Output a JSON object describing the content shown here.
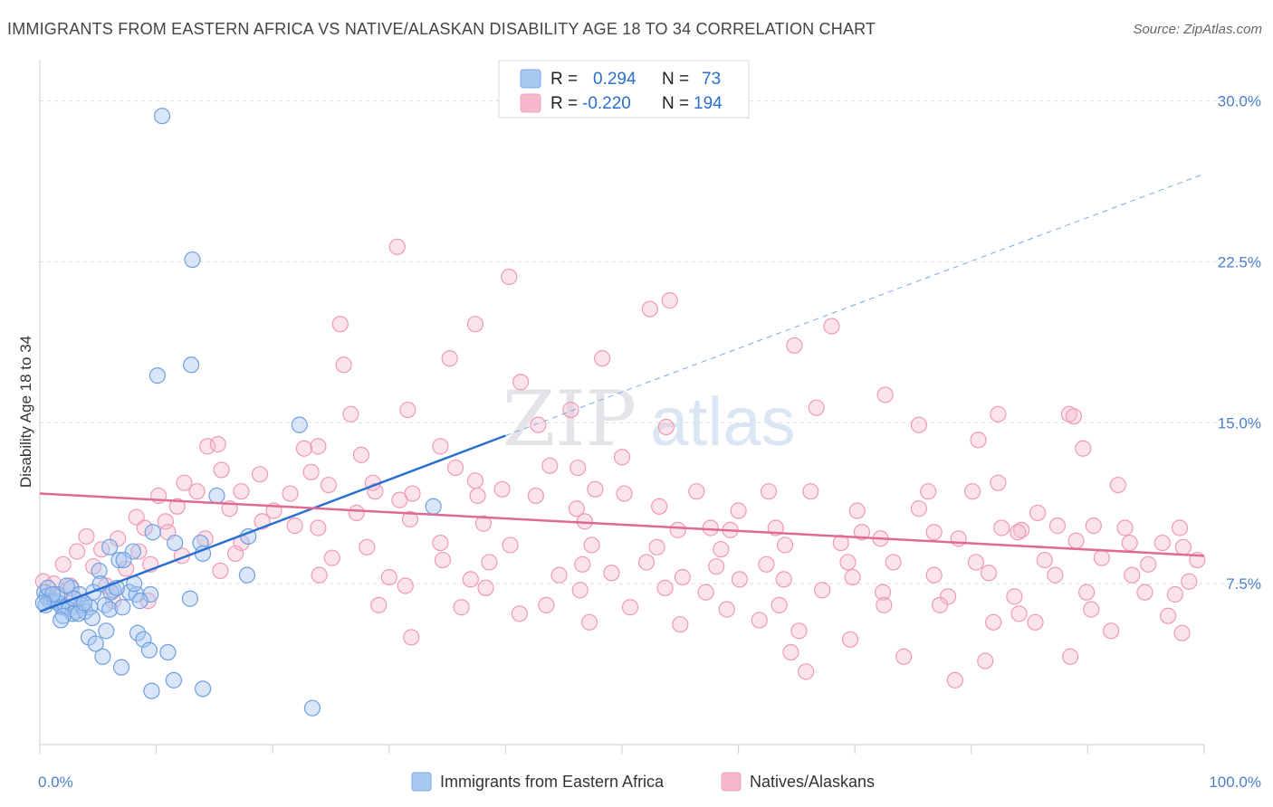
{
  "title": "IMMIGRANTS FROM EASTERN AFRICA VS NATIVE/ALASKAN DISABILITY AGE 18 TO 34 CORRELATION CHART",
  "source": "Source: ZipAtlas.com",
  "watermark": {
    "zip": "ZIP",
    "atlas": "atlas"
  },
  "legend_top": [
    {
      "r_label": "R =",
      "r_value": "0.294",
      "n_label": "N =",
      "n_value": "73",
      "color": "#a8c8f0"
    },
    {
      "r_label": "R =",
      "r_value": "-0.220",
      "n_label": "N =",
      "n_value": "194",
      "color": "#f5b8cc"
    }
  ],
  "chart_data": {
    "type": "scatter",
    "title": "IMMIGRANTS FROM EASTERN AFRICA VS NATIVE/ALASKAN DISABILITY AGE 18 TO 34 CORRELATION CHART",
    "xlabel": "",
    "ylabel": "Disability Age 18 to 34",
    "xlim": [
      0,
      100
    ],
    "ylim": [
      0,
      31.5
    ],
    "x_tick_labels": [
      "0.0%",
      "100.0%"
    ],
    "y_ticks": [
      7.5,
      15.0,
      22.5,
      30.0
    ],
    "y_tick_labels": [
      "7.5%",
      "15.0%",
      "22.5%",
      "30.0%"
    ],
    "grid": true,
    "legend_position": "bottom",
    "series": [
      {
        "name": "Immigrants from Eastern Africa",
        "color": "#7aa8e8",
        "line_color": "#2a6fcf",
        "trend": {
          "x0": 0,
          "y0": 6.2,
          "x1": 40,
          "y1": 14.4,
          "x_dash_end": 100,
          "y_dash_end": 26.6
        },
        "points": [
          [
            10.5,
            29.3
          ],
          [
            13.1,
            22.6
          ],
          [
            10.1,
            17.2
          ],
          [
            13.0,
            17.7
          ],
          [
            22.3,
            14.9
          ],
          [
            15.2,
            11.6
          ],
          [
            33.8,
            11.1
          ],
          [
            9.7,
            9.9
          ],
          [
            11.6,
            9.4
          ],
          [
            13.8,
            9.4
          ],
          [
            14.0,
            8.9
          ],
          [
            17.9,
            9.7
          ],
          [
            8.0,
            9.0
          ],
          [
            6.0,
            9.2
          ],
          [
            6.8,
            8.6
          ],
          [
            7.2,
            8.6
          ],
          [
            5.1,
            8.1
          ],
          [
            2.7,
            7.3
          ],
          [
            3.4,
            7.0
          ],
          [
            4.6,
            7.1
          ],
          [
            6.3,
            7.2
          ],
          [
            6.1,
            7.1
          ],
          [
            7.7,
            7.1
          ],
          [
            8.3,
            7.0
          ],
          [
            9.5,
            7.0
          ],
          [
            8.6,
            6.7
          ],
          [
            12.9,
            6.8
          ],
          [
            17.8,
            7.9
          ],
          [
            0.4,
            7.1
          ],
          [
            0.6,
            6.9
          ],
          [
            0.8,
            6.7
          ],
          [
            1.0,
            6.7
          ],
          [
            0.5,
            6.5
          ],
          [
            1.3,
            6.7
          ],
          [
            1.6,
            6.6
          ],
          [
            1.9,
            6.4
          ],
          [
            2.2,
            6.4
          ],
          [
            2.5,
            6.3
          ],
          [
            2.8,
            6.1
          ],
          [
            3.1,
            6.2
          ],
          [
            3.6,
            6.5
          ],
          [
            3.9,
            6.2
          ],
          [
            4.3,
            6.4
          ],
          [
            2.0,
            6.0
          ],
          [
            1.8,
            5.8
          ],
          [
            3.3,
            6.1
          ],
          [
            4.5,
            5.9
          ],
          [
            5.6,
            6.5
          ],
          [
            6.0,
            6.3
          ],
          [
            7.1,
            6.4
          ],
          [
            5.7,
            5.3
          ],
          [
            4.2,
            5.0
          ],
          [
            4.8,
            4.7
          ],
          [
            8.4,
            5.2
          ],
          [
            8.9,
            4.9
          ],
          [
            9.4,
            4.4
          ],
          [
            11.0,
            4.3
          ],
          [
            5.4,
            4.1
          ],
          [
            7.0,
            3.6
          ],
          [
            11.5,
            3.0
          ],
          [
            9.6,
            2.5
          ],
          [
            14.0,
            2.6
          ],
          [
            23.4,
            1.7
          ],
          [
            1.5,
            7.0
          ],
          [
            2.3,
            7.4
          ],
          [
            0.7,
            7.3
          ],
          [
            1.1,
            7.0
          ],
          [
            0.3,
            6.6
          ],
          [
            2.9,
            6.8
          ],
          [
            3.8,
            6.6
          ],
          [
            5.2,
            7.5
          ],
          [
            8.1,
            7.5
          ],
          [
            6.6,
            7.3
          ]
        ]
      },
      {
        "name": "Natives/Alaskans",
        "color": "#f2a3bd",
        "line_color": "#e06a92",
        "trend": {
          "x0": 0,
          "y0": 11.7,
          "x1": 100,
          "y1": 8.8
        },
        "points": [
          [
            30.7,
            23.2
          ],
          [
            40.3,
            21.8
          ],
          [
            52.4,
            20.3
          ],
          [
            54.1,
            20.7
          ],
          [
            25.8,
            19.6
          ],
          [
            37.4,
            19.6
          ],
          [
            68.0,
            19.5
          ],
          [
            35.2,
            18.0
          ],
          [
            48.3,
            18.0
          ],
          [
            64.8,
            18.6
          ],
          [
            26.1,
            17.7
          ],
          [
            41.3,
            16.9
          ],
          [
            72.6,
            16.3
          ],
          [
            82.3,
            15.4
          ],
          [
            88.4,
            15.4
          ],
          [
            88.8,
            15.3
          ],
          [
            66.7,
            15.7
          ],
          [
            31.6,
            15.6
          ],
          [
            26.7,
            15.4
          ],
          [
            45.6,
            15.6
          ],
          [
            42.8,
            14.9
          ],
          [
            53.8,
            14.8
          ],
          [
            75.5,
            14.9
          ],
          [
            80.6,
            14.2
          ],
          [
            89.6,
            13.8
          ],
          [
            14.4,
            13.9
          ],
          [
            15.3,
            14.0
          ],
          [
            23.9,
            13.9
          ],
          [
            22.7,
            13.8
          ],
          [
            27.6,
            13.5
          ],
          [
            34.4,
            13.9
          ],
          [
            50.0,
            13.4
          ],
          [
            46.2,
            12.9
          ],
          [
            43.8,
            13.0
          ],
          [
            35.7,
            12.9
          ],
          [
            15.6,
            12.8
          ],
          [
            18.9,
            12.6
          ],
          [
            23.3,
            12.7
          ],
          [
            12.4,
            12.2
          ],
          [
            24.8,
            12.1
          ],
          [
            28.6,
            12.2
          ],
          [
            37.4,
            12.3
          ],
          [
            39.7,
            11.9
          ],
          [
            47.7,
            11.9
          ],
          [
            50.2,
            11.7
          ],
          [
            56.4,
            11.8
          ],
          [
            62.6,
            11.8
          ],
          [
            66.2,
            11.8
          ],
          [
            76.3,
            11.8
          ],
          [
            80.1,
            11.8
          ],
          [
            82.3,
            12.2
          ],
          [
            92.6,
            12.1
          ],
          [
            10.2,
            11.6
          ],
          [
            13.5,
            11.8
          ],
          [
            17.3,
            11.8
          ],
          [
            21.5,
            11.7
          ],
          [
            28.8,
            11.8
          ],
          [
            32.0,
            11.7
          ],
          [
            37.6,
            11.6
          ],
          [
            11.8,
            11.1
          ],
          [
            16.3,
            11.0
          ],
          [
            20.1,
            10.9
          ],
          [
            27.2,
            10.8
          ],
          [
            30.9,
            11.4
          ],
          [
            42.6,
            11.6
          ],
          [
            46.1,
            11.0
          ],
          [
            53.2,
            11.1
          ],
          [
            60.0,
            10.9
          ],
          [
            70.2,
            10.9
          ],
          [
            75.5,
            11.0
          ],
          [
            85.7,
            10.8
          ],
          [
            8.3,
            10.6
          ],
          [
            10.8,
            10.4
          ],
          [
            19.1,
            10.4
          ],
          [
            21.9,
            10.2
          ],
          [
            23.9,
            10.1
          ],
          [
            31.8,
            10.5
          ],
          [
            38.1,
            10.3
          ],
          [
            46.8,
            10.4
          ],
          [
            54.8,
            10.0
          ],
          [
            57.6,
            10.1
          ],
          [
            59.3,
            10.0
          ],
          [
            63.2,
            10.1
          ],
          [
            70.6,
            9.9
          ],
          [
            76.8,
            9.9
          ],
          [
            82.6,
            10.1
          ],
          [
            84.3,
            10.0
          ],
          [
            87.4,
            10.2
          ],
          [
            90.5,
            10.2
          ],
          [
            93.2,
            10.1
          ],
          [
            97.9,
            10.1
          ],
          [
            4.0,
            9.7
          ],
          [
            6.7,
            9.6
          ],
          [
            9.0,
            10.1
          ],
          [
            11.0,
            9.9
          ],
          [
            14.2,
            9.6
          ],
          [
            17.3,
            9.4
          ],
          [
            28.1,
            9.2
          ],
          [
            34.4,
            9.4
          ],
          [
            40.4,
            9.3
          ],
          [
            47.4,
            9.3
          ],
          [
            53.0,
            9.2
          ],
          [
            58.5,
            9.1
          ],
          [
            64.0,
            9.3
          ],
          [
            68.8,
            9.4
          ],
          [
            72.2,
            9.6
          ],
          [
            78.9,
            9.6
          ],
          [
            84.0,
            9.9
          ],
          [
            89.0,
            9.5
          ],
          [
            93.6,
            9.4
          ],
          [
            96.4,
            9.4
          ],
          [
            98.2,
            9.2
          ],
          [
            3.2,
            9.0
          ],
          [
            5.3,
            9.1
          ],
          [
            8.5,
            9.0
          ],
          [
            12.2,
            8.8
          ],
          [
            16.8,
            8.9
          ],
          [
            25.1,
            8.7
          ],
          [
            34.6,
            8.6
          ],
          [
            38.6,
            8.5
          ],
          [
            46.6,
            8.4
          ],
          [
            52.1,
            8.5
          ],
          [
            58.1,
            8.3
          ],
          [
            62.4,
            8.4
          ],
          [
            69.4,
            8.5
          ],
          [
            73.3,
            8.5
          ],
          [
            80.4,
            8.5
          ],
          [
            86.3,
            8.6
          ],
          [
            91.2,
            8.7
          ],
          [
            95.2,
            8.4
          ],
          [
            99.4,
            8.6
          ],
          [
            2.0,
            8.4
          ],
          [
            4.6,
            8.3
          ],
          [
            7.4,
            8.2
          ],
          [
            9.5,
            8.4
          ],
          [
            15.5,
            8.1
          ],
          [
            24.0,
            7.9
          ],
          [
            30.0,
            7.8
          ],
          [
            37.0,
            7.7
          ],
          [
            44.6,
            7.9
          ],
          [
            49.1,
            8.0
          ],
          [
            55.2,
            7.8
          ],
          [
            60.1,
            7.7
          ],
          [
            63.9,
            7.7
          ],
          [
            69.8,
            7.8
          ],
          [
            76.8,
            7.9
          ],
          [
            81.5,
            8.0
          ],
          [
            87.2,
            7.9
          ],
          [
            93.8,
            7.9
          ],
          [
            98.7,
            7.6
          ],
          [
            0.3,
            7.6
          ],
          [
            1.2,
            7.5
          ],
          [
            2.6,
            7.4
          ],
          [
            5.7,
            7.4
          ],
          [
            31.4,
            7.4
          ],
          [
            38.3,
            7.3
          ],
          [
            46.4,
            7.2
          ],
          [
            53.7,
            7.3
          ],
          [
            57.2,
            7.1
          ],
          [
            67.2,
            7.2
          ],
          [
            72.4,
            7.1
          ],
          [
            78.0,
            6.9
          ],
          [
            83.7,
            6.9
          ],
          [
            89.9,
            7.1
          ],
          [
            94.9,
            7.1
          ],
          [
            97.5,
            7.0
          ],
          [
            1.5,
            6.9
          ],
          [
            3.0,
            6.8
          ],
          [
            6.3,
            6.7
          ],
          [
            9.3,
            6.7
          ],
          [
            29.1,
            6.5
          ],
          [
            36.2,
            6.4
          ],
          [
            43.5,
            6.5
          ],
          [
            50.7,
            6.4
          ],
          [
            59.0,
            6.3
          ],
          [
            63.5,
            6.5
          ],
          [
            72.5,
            6.5
          ],
          [
            77.3,
            6.5
          ],
          [
            84.1,
            6.1
          ],
          [
            90.3,
            6.3
          ],
          [
            96.9,
            6.0
          ],
          [
            31.9,
            5.0
          ],
          [
            41.2,
            6.1
          ],
          [
            47.2,
            5.7
          ],
          [
            55.0,
            5.6
          ],
          [
            61.8,
            5.8
          ],
          [
            65.2,
            5.3
          ],
          [
            69.6,
            4.9
          ],
          [
            81.9,
            5.7
          ],
          [
            85.5,
            5.7
          ],
          [
            92.0,
            5.3
          ],
          [
            98.1,
            5.2
          ],
          [
            64.5,
            4.3
          ],
          [
            74.2,
            4.1
          ],
          [
            81.2,
            3.9
          ],
          [
            88.5,
            4.1
          ],
          [
            78.6,
            3.0
          ],
          [
            65.8,
            3.4
          ]
        ]
      }
    ]
  },
  "bottom_legend": [
    {
      "label": "Immigrants from Eastern Africa",
      "color": "#a8c8f0",
      "border": "#7aa8e8"
    },
    {
      "label": "Natives/Alaskans",
      "color": "#f5b8cc",
      "border": "#f2a3bd"
    }
  ]
}
